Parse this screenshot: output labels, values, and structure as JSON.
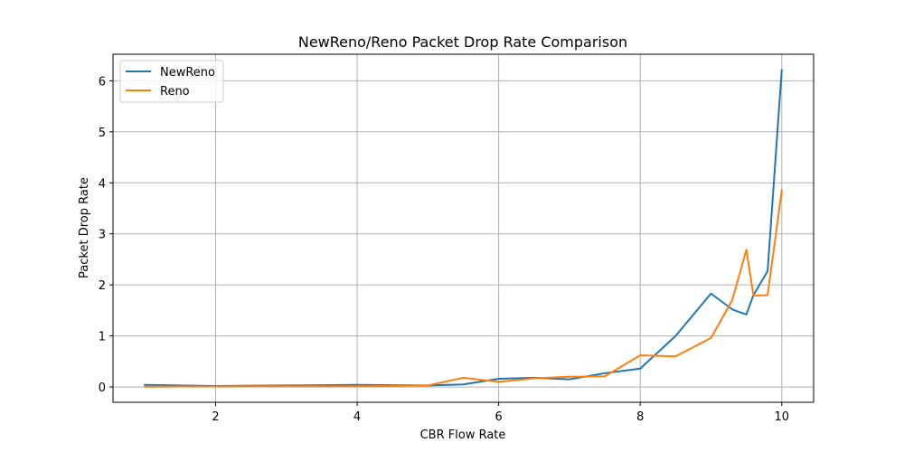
{
  "chart_data": {
    "type": "line",
    "title": "NewReno/Reno Packet Drop Rate Comparison",
    "xlabel": "CBR Flow Rate",
    "ylabel": "Packet Drop Rate",
    "xlim": [
      0.55,
      10.45
    ],
    "ylim": [
      -0.3,
      6.52
    ],
    "xticks": [
      2,
      4,
      6,
      8,
      10
    ],
    "yticks": [
      0,
      1,
      2,
      3,
      4,
      5,
      6
    ],
    "grid": true,
    "legend_position": "top-left",
    "series": [
      {
        "name": "NewReno",
        "color": "#1f77b4",
        "x": [
          1,
          1.5,
          2,
          2.5,
          3,
          3.5,
          4,
          4.5,
          5,
          5.5,
          6,
          6.5,
          7,
          7.5,
          8,
          8.5,
          9,
          9.3,
          9.5,
          9.6,
          9.8,
          10
        ],
        "y": [
          0.04,
          0.03,
          0.02,
          0.025,
          0.03,
          0.035,
          0.04,
          0.035,
          0.03,
          0.05,
          0.16,
          0.18,
          0.15,
          0.27,
          0.36,
          1.0,
          1.83,
          1.52,
          1.42,
          1.8,
          2.27,
          6.21
        ]
      },
      {
        "name": "Reno",
        "color": "#ff7f0e",
        "x": [
          1,
          1.5,
          2,
          2.5,
          3,
          3.5,
          4,
          4.5,
          5,
          5.5,
          6,
          6.5,
          7,
          7.5,
          8,
          8.5,
          9,
          9.3,
          9.5,
          9.6,
          9.8,
          10
        ],
        "y": [
          0.005,
          0.01,
          0.01,
          0.015,
          0.015,
          0.015,
          0.015,
          0.02,
          0.03,
          0.18,
          0.1,
          0.17,
          0.2,
          0.21,
          0.62,
          0.6,
          0.96,
          1.7,
          2.69,
          1.79,
          1.8,
          3.85
        ]
      }
    ]
  }
}
